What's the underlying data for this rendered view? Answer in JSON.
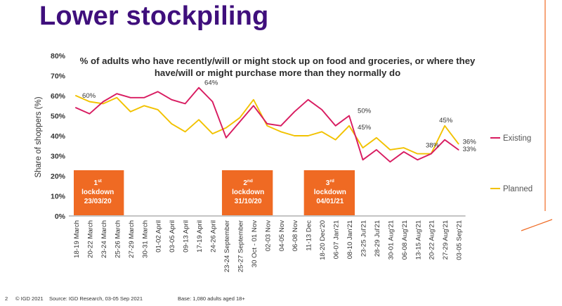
{
  "slide": {
    "title": "Lower stockpiling",
    "page_number": "2",
    "copyright": "© IGD 2021",
    "source": "Source: IGD Research, 03-05 Sep 2021",
    "base": "Base: 1,080 adults aged 18+",
    "accent_color": "#ef6a23",
    "title_color": "#3f0f7c"
  },
  "chart_data": {
    "type": "line",
    "title": "% of adults who have recently/will or might stock up on food and groceries, or where they have/will or might purchase more than they normally do",
    "title_lines": [
      "% of adults who have recently/will or might stock up on food and groceries, or where they",
      "have/will or might purchase more than they normally do"
    ],
    "ylabel": "Share of shoppers (%)",
    "ylim": [
      0,
      80
    ],
    "yticks": [
      "0%",
      "10%",
      "20%",
      "30%",
      "40%",
      "50%",
      "60%",
      "70%",
      "80%"
    ],
    "grid": false,
    "legend_position": "right",
    "categories": [
      "18-19 March",
      "20-22 March",
      "23-24 March",
      "25-26 March",
      "27-29 March",
      "30-31 March",
      "01-02 April",
      "03-05 April",
      "09-13 April",
      "17-19 April",
      "24-26 April",
      "23-24 September",
      "25-27 September",
      "30 Oct - 01 Nov",
      "02-03 Nov",
      "04-05 Nov",
      "06-08 Nov",
      "11-13 Dec",
      "18-20 Dec'20",
      "06-07 Jan'21",
      "08-10 Jan'21",
      "23-25 Jul'21",
      "28-29 Jul'21",
      "30-01 Aug'21",
      "06-08 Aug'21",
      "13-15 Aug'21",
      "20-22 Aug'21",
      "27-29 Aug'21",
      "03-05 Sep'21"
    ],
    "series": [
      {
        "name": "Existing",
        "color": "#d81b60",
        "values": [
          54,
          51,
          57,
          61,
          59,
          59,
          62,
          58,
          56,
          64,
          57,
          39,
          47,
          55,
          46,
          45,
          52,
          58,
          53,
          45,
          50,
          28,
          33,
          27,
          32,
          28,
          31,
          38,
          33
        ]
      },
      {
        "name": "Planned",
        "color": "#f2c200",
        "values": [
          60,
          57,
          56,
          59,
          52,
          55,
          53,
          46,
          42,
          48,
          41,
          44,
          49,
          58,
          45,
          42,
          40,
          40,
          42,
          38,
          45,
          34,
          39,
          33,
          34,
          31,
          31,
          45,
          36
        ]
      }
    ],
    "data_labels": [
      {
        "series": 1,
        "index": 0,
        "text": "60%"
      },
      {
        "series": 0,
        "index": 9,
        "text": "64%"
      },
      {
        "series": 0,
        "index": 20,
        "text": "50%"
      },
      {
        "series": 1,
        "index": 20,
        "text": "45%"
      },
      {
        "series": 1,
        "index": 27,
        "text": "45%"
      },
      {
        "series": 0,
        "index": 27,
        "text": "38%"
      },
      {
        "series": 1,
        "index": 28,
        "text": "36%"
      },
      {
        "series": 0,
        "index": 28,
        "text": "33%"
      }
    ],
    "annotations": [
      {
        "name": "lockdown-1",
        "ordinal": "1",
        "suffix": "st",
        "label": "lockdown",
        "date": "23/03/20"
      },
      {
        "name": "lockdown-2",
        "ordinal": "2",
        "suffix": "nd",
        "label": "lockdown",
        "date": "31/10/20"
      },
      {
        "name": "lockdown-3",
        "ordinal": "3",
        "suffix": "rd",
        "label": "lockdown",
        "date": "04/01/21"
      }
    ]
  }
}
